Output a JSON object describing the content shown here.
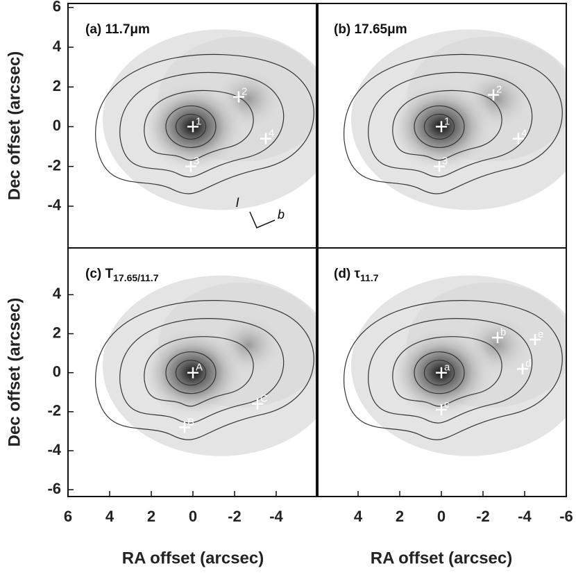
{
  "chart_data": [
    {
      "type": "image",
      "title": "(a) 11.7μm",
      "ylabel": "Dec offset (arcsec)",
      "xlim": [
        6,
        -6
      ],
      "ylim": [
        -6.1,
        6.2
      ],
      "yticks": [
        -4,
        -2,
        0,
        2,
        4,
        6
      ],
      "points": {
        "x": [
          0,
          -2.2,
          0.1,
          -3.5
        ],
        "y": [
          0,
          1.5,
          -2,
          -0.6
        ],
        "labels": [
          "1",
          "2",
          "3",
          "4"
        ]
      },
      "annotations": [
        "l",
        "b"
      ]
    },
    {
      "type": "image",
      "title": "(b) 17.65μm",
      "xlim": [
        6,
        -6
      ],
      "ylim": [
        -6.1,
        6.2
      ],
      "points": {
        "x": [
          0,
          -2.5,
          0.1,
          -3.7
        ],
        "y": [
          0,
          1.6,
          -2,
          -0.6
        ],
        "labels": [
          "1",
          "2",
          "3",
          "4"
        ]
      }
    },
    {
      "type": "image",
      "title": "(c) T",
      "title_subscript": "17.65/11.7",
      "ylabel": "Dec offset (arcsec)",
      "xlabel": "RA offset (arcsec)",
      "xlim": [
        6,
        -6
      ],
      "ylim": [
        -6.35,
        6.4
      ],
      "xticks": [
        6,
        4,
        2,
        0,
        -2,
        -4
      ],
      "yticks": [
        -6,
        -4,
        -2,
        0,
        2,
        4
      ],
      "points": {
        "x": [
          0,
          0.4,
          -3.1
        ],
        "y": [
          0,
          -2.8,
          -1.6
        ],
        "labels": [
          "A",
          "B",
          "C"
        ]
      }
    },
    {
      "type": "image",
      "title": "(d) τ",
      "title_subscript": "11.7",
      "xlabel": "RA offset (arcsec)",
      "xlim": [
        6,
        -6
      ],
      "ylim": [
        -6.35,
        6.4
      ],
      "xticks": [
        4,
        2,
        0,
        -2,
        -4,
        -6
      ],
      "points": {
        "x": [
          0,
          -2.7,
          0,
          -3.9,
          -4.5
        ],
        "y": [
          0,
          1.8,
          -1.9,
          0.2,
          1.7
        ],
        "labels": [
          "a",
          "b",
          "c",
          "d",
          "e"
        ]
      }
    }
  ]
}
